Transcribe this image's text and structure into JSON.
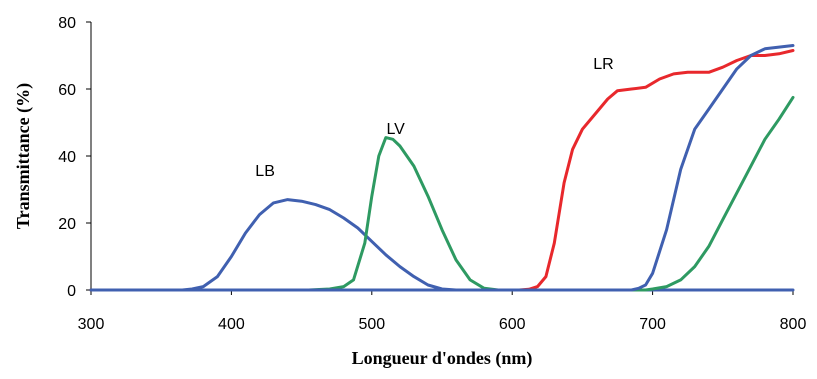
{
  "chart_data": {
    "type": "line",
    "title": "",
    "xlabel": "Longueur d'ondes (nm)",
    "ylabel": "Transmittance (%)",
    "xlim": [
      300,
      800
    ],
    "ylim": [
      0,
      80
    ],
    "xticks": [
      300,
      400,
      500,
      600,
      700,
      800
    ],
    "yticks": [
      0,
      20,
      40,
      60,
      80
    ],
    "xtick_labels": [
      "300",
      "400",
      "500",
      "600",
      "700",
      "800"
    ],
    "ytick_labels": [
      "0",
      "20",
      "40",
      "60",
      "80"
    ],
    "grid": false,
    "legend": "none",
    "series": [
      {
        "name": "LB",
        "color": "#4060b0",
        "label_at": [
          424,
          34
        ],
        "points": [
          [
            300,
            0
          ],
          [
            365,
            0
          ],
          [
            372,
            0.3
          ],
          [
            380,
            1
          ],
          [
            390,
            4
          ],
          [
            400,
            10
          ],
          [
            410,
            17
          ],
          [
            420,
            22.5
          ],
          [
            430,
            26
          ],
          [
            440,
            27
          ],
          [
            450,
            26.5
          ],
          [
            460,
            25.5
          ],
          [
            470,
            24
          ],
          [
            480,
            21.5
          ],
          [
            490,
            18.5
          ],
          [
            500,
            14.5
          ],
          [
            510,
            10.5
          ],
          [
            520,
            7
          ],
          [
            530,
            4
          ],
          [
            540,
            1.5
          ],
          [
            550,
            0.3
          ],
          [
            560,
            0
          ],
          [
            800,
            0
          ]
        ]
      },
      {
        "name": "LV",
        "color": "#2e9a62",
        "label_at": [
          517,
          46.5
        ],
        "points": [
          [
            300,
            0
          ],
          [
            455,
            0
          ],
          [
            470,
            0.3
          ],
          [
            480,
            1
          ],
          [
            487,
            3
          ],
          [
            495,
            14
          ],
          [
            500,
            28
          ],
          [
            505,
            40
          ],
          [
            510,
            45.5
          ],
          [
            515,
            45
          ],
          [
            520,
            43
          ],
          [
            530,
            37
          ],
          [
            540,
            28
          ],
          [
            550,
            18
          ],
          [
            560,
            9
          ],
          [
            570,
            3
          ],
          [
            580,
            0.5
          ],
          [
            590,
            0
          ],
          [
            695,
            0
          ],
          [
            700,
            0.3
          ],
          [
            710,
            1
          ],
          [
            720,
            3
          ],
          [
            730,
            7
          ],
          [
            740,
            13
          ],
          [
            750,
            21
          ],
          [
            760,
            29
          ],
          [
            770,
            37
          ],
          [
            780,
            45
          ],
          [
            790,
            51
          ],
          [
            800,
            57.5
          ]
        ]
      },
      {
        "name": "LR",
        "color": "#e8282c",
        "label_at": [
          665,
          66
        ],
        "points": [
          [
            300,
            0
          ],
          [
            605,
            0
          ],
          [
            612,
            0.2
          ],
          [
            618,
            1
          ],
          [
            624,
            4
          ],
          [
            630,
            14
          ],
          [
            637,
            32
          ],
          [
            643,
            42
          ],
          [
            650,
            48
          ],
          [
            660,
            53
          ],
          [
            668,
            57
          ],
          [
            675,
            59.5
          ],
          [
            685,
            60
          ],
          [
            695,
            60.5
          ],
          [
            705,
            63
          ],
          [
            715,
            64.5
          ],
          [
            725,
            65
          ],
          [
            740,
            65
          ],
          [
            750,
            66.5
          ],
          [
            760,
            68.5
          ],
          [
            770,
            70
          ],
          [
            780,
            70
          ],
          [
            790,
            70.5
          ],
          [
            800,
            71.5
          ]
        ]
      },
      {
        "name": "",
        "color": "#4060b0",
        "points": [
          [
            300,
            0
          ],
          [
            685,
            0
          ],
          [
            690,
            0.5
          ],
          [
            695,
            1.5
          ],
          [
            700,
            5
          ],
          [
            710,
            18
          ],
          [
            720,
            36
          ],
          [
            730,
            48
          ],
          [
            740,
            54
          ],
          [
            750,
            60
          ],
          [
            760,
            66
          ],
          [
            770,
            70
          ],
          [
            780,
            72
          ],
          [
            790,
            72.5
          ],
          [
            800,
            73
          ]
        ]
      }
    ]
  }
}
